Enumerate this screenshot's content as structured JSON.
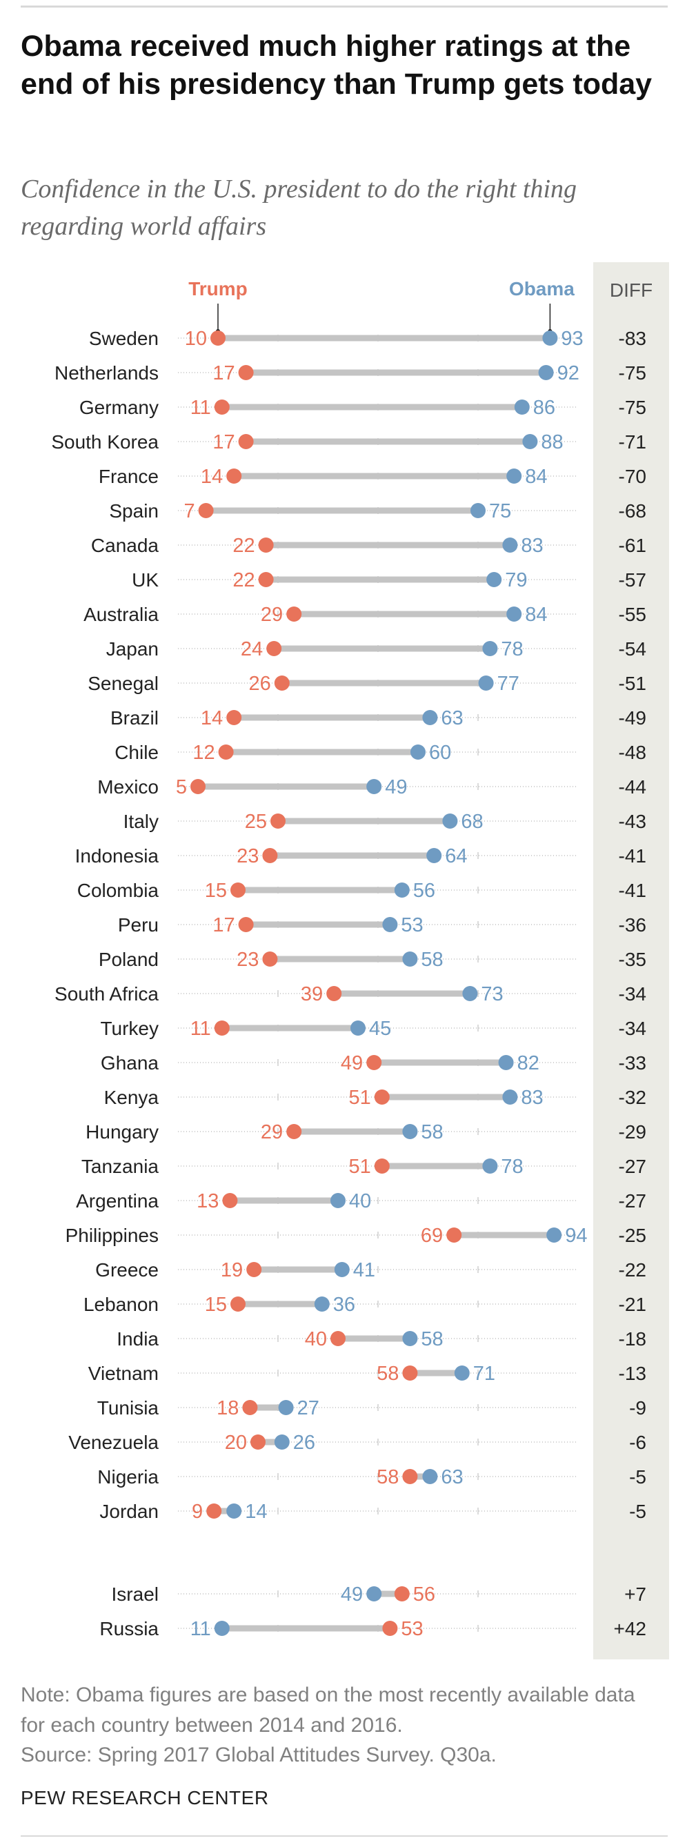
{
  "title": "Obama received much higher ratings at the end of his presidency than Trump gets today",
  "subtitle": "Confidence in the U.S. president to do the right thing regarding world affairs",
  "note": "Note: Obama figures are based on the most recently available data for each country between 2014 and 2016.",
  "source": "Source: Spring 2017 Global Attitudes Survey. Q30a.",
  "brand": "PEW RESEARCH CENTER",
  "colors": {
    "trump": "#e8735a",
    "obama": "#6f9bc2",
    "bar": "#c4c4c4",
    "diff_panel": "#ebebe5"
  },
  "chart_data": {
    "type": "dot",
    "title": "Confidence in the U.S. president to do the right thing regarding world affairs",
    "xlim": [
      0,
      100
    ],
    "legend": {
      "trump": "Trump",
      "obama": "Obama",
      "diff": "DIFF"
    },
    "countries": [
      {
        "name": "Sweden",
        "trump": 10,
        "obama": 93,
        "diff": "-83"
      },
      {
        "name": "Netherlands",
        "trump": 17,
        "obama": 92,
        "diff": "-75"
      },
      {
        "name": "Germany",
        "trump": 11,
        "obama": 86,
        "diff": "-75"
      },
      {
        "name": "South Korea",
        "trump": 17,
        "obama": 88,
        "diff": "-71"
      },
      {
        "name": "France",
        "trump": 14,
        "obama": 84,
        "diff": "-70"
      },
      {
        "name": "Spain",
        "trump": 7,
        "obama": 75,
        "diff": "-68"
      },
      {
        "name": "Canada",
        "trump": 22,
        "obama": 83,
        "diff": "-61"
      },
      {
        "name": "UK",
        "trump": 22,
        "obama": 79,
        "diff": "-57"
      },
      {
        "name": "Australia",
        "trump": 29,
        "obama": 84,
        "diff": "-55"
      },
      {
        "name": "Japan",
        "trump": 24,
        "obama": 78,
        "diff": "-54"
      },
      {
        "name": "Senegal",
        "trump": 26,
        "obama": 77,
        "diff": "-51"
      },
      {
        "name": "Brazil",
        "trump": 14,
        "obama": 63,
        "diff": "-49"
      },
      {
        "name": "Chile",
        "trump": 12,
        "obama": 60,
        "diff": "-48"
      },
      {
        "name": "Mexico",
        "trump": 5,
        "obama": 49,
        "diff": "-44"
      },
      {
        "name": "Italy",
        "trump": 25,
        "obama": 68,
        "diff": "-43"
      },
      {
        "name": "Indonesia",
        "trump": 23,
        "obama": 64,
        "diff": "-41"
      },
      {
        "name": "Colombia",
        "trump": 15,
        "obama": 56,
        "diff": "-41"
      },
      {
        "name": "Peru",
        "trump": 17,
        "obama": 53,
        "diff": "-36"
      },
      {
        "name": "Poland",
        "trump": 23,
        "obama": 58,
        "diff": "-35"
      },
      {
        "name": "South Africa",
        "trump": 39,
        "obama": 73,
        "diff": "-34"
      },
      {
        "name": "Turkey",
        "trump": 11,
        "obama": 45,
        "diff": "-34"
      },
      {
        "name": "Ghana",
        "trump": 49,
        "obama": 82,
        "diff": "-33"
      },
      {
        "name": "Kenya",
        "trump": 51,
        "obama": 83,
        "diff": "-32"
      },
      {
        "name": "Hungary",
        "trump": 29,
        "obama": 58,
        "diff": "-29"
      },
      {
        "name": "Tanzania",
        "trump": 51,
        "obama": 78,
        "diff": "-27"
      },
      {
        "name": "Argentina",
        "trump": 13,
        "obama": 40,
        "diff": "-27"
      },
      {
        "name": "Philippines",
        "trump": 69,
        "obama": 94,
        "diff": "-25"
      },
      {
        "name": "Greece",
        "trump": 19,
        "obama": 41,
        "diff": "-22"
      },
      {
        "name": "Lebanon",
        "trump": 15,
        "obama": 36,
        "diff": "-21"
      },
      {
        "name": "India",
        "trump": 40,
        "obama": 58,
        "diff": "-18"
      },
      {
        "name": "Vietnam",
        "trump": 58,
        "obama": 71,
        "diff": "-13"
      },
      {
        "name": "Tunisia",
        "trump": 18,
        "obama": 27,
        "diff": "-9"
      },
      {
        "name": "Venezuela",
        "trump": 20,
        "obama": 26,
        "diff": "-6"
      },
      {
        "name": "Nigeria",
        "trump": 58,
        "obama": 63,
        "diff": "-5"
      },
      {
        "name": "Jordan",
        "trump": 9,
        "obama": 14,
        "diff": "-5"
      },
      {
        "name": "Israel",
        "trump": 56,
        "obama": 49,
        "diff": "+7"
      },
      {
        "name": "Russia",
        "trump": 53,
        "obama": 11,
        "diff": "+42"
      }
    ]
  }
}
